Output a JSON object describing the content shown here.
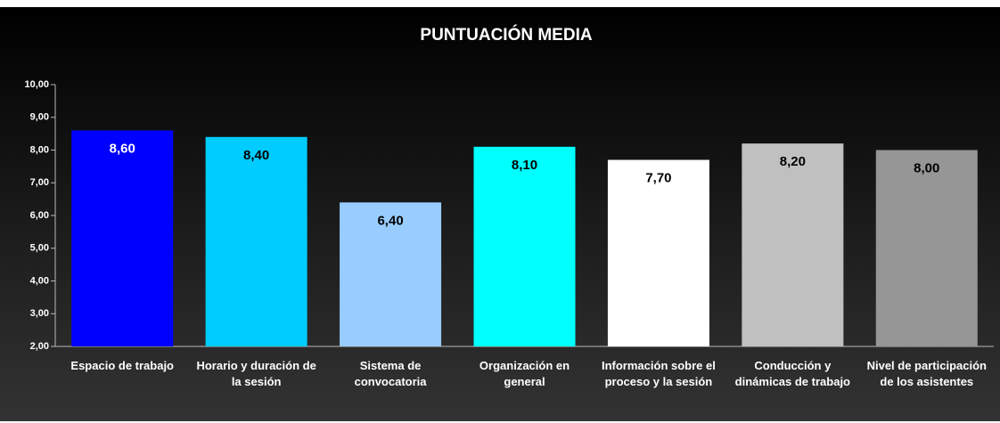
{
  "chart_data": {
    "type": "bar",
    "title": "PUNTUACIÓN MEDIA",
    "categories": [
      "Espacio de trabajo",
      "Horario y duración de la sesión",
      "Sistema de convocatoria",
      "Organización en general",
      "Información sobre el proceso y la sesión",
      "Conducción y dinámicas de trabajo",
      "Nivel de participación de los asistentes"
    ],
    "values": [
      8.6,
      8.4,
      6.4,
      8.1,
      7.7,
      8.2,
      8.0
    ],
    "value_labels": [
      "8,60",
      "8,40",
      "6,40",
      "8,10",
      "7,70",
      "8,20",
      "8,00"
    ],
    "colors": [
      "#0000ff",
      "#00ccff",
      "#99ccff",
      "#00ffff",
      "#ffffff",
      "#c0c0c0",
      "#969696"
    ],
    "value_label_colors": [
      "#ffffff",
      "#000000",
      "#000000",
      "#000000",
      "#000000",
      "#000000",
      "#000000"
    ],
    "ylim": [
      2,
      10
    ],
    "yticks": [
      {
        "value": 2,
        "label": "2,00"
      },
      {
        "value": 3,
        "label": "3,00"
      },
      {
        "value": 4,
        "label": "4,00"
      },
      {
        "value": 5,
        "label": "5,00"
      },
      {
        "value": 6,
        "label": "6,00"
      },
      {
        "value": 7,
        "label": "7,00"
      },
      {
        "value": 8,
        "label": "8,00"
      },
      {
        "value": 9,
        "label": "9,00"
      },
      {
        "value": 10,
        "label": "10,00"
      }
    ],
    "grid": false
  }
}
